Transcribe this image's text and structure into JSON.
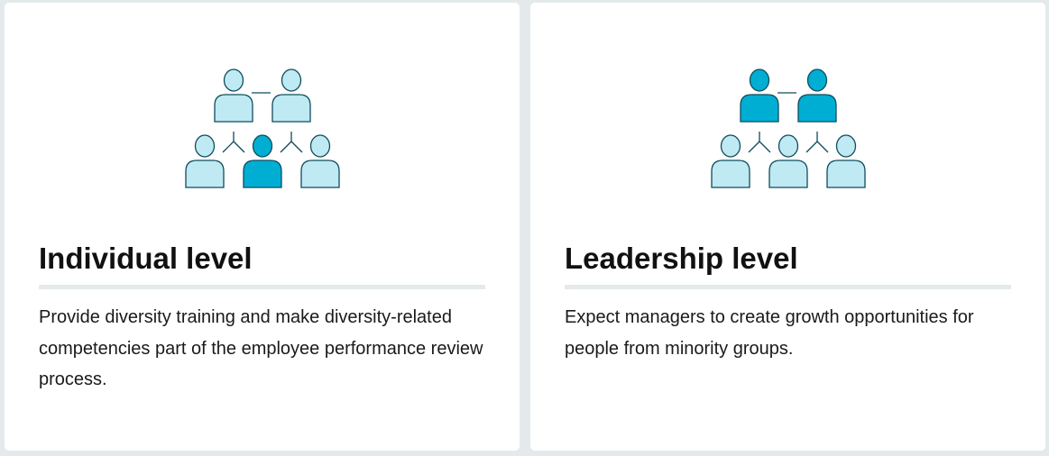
{
  "colors": {
    "background": "#e4eaec",
    "card": "#ffffff",
    "icon_light": "#bfeaf3",
    "icon_dark": "#00aed3",
    "icon_stroke": "#0f4c5c",
    "divider": "#e4eaec"
  },
  "cards": [
    {
      "icon": "org-chart-individual-icon",
      "title": "Individual level",
      "description": "Provide diversity training and make diversity-related competencies part of the employee performance review process."
    },
    {
      "icon": "org-chart-leadership-icon",
      "title": "Leadership level",
      "description": "Expect managers to create growth opportunities for people from minority groups."
    }
  ]
}
